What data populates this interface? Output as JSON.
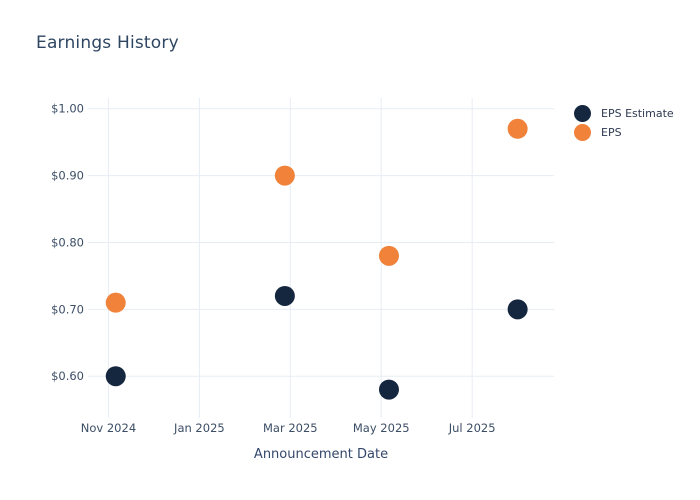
{
  "chart_data": {
    "type": "scatter",
    "title": "Earnings History",
    "xlabel": "Announcement Date",
    "ylabel": "",
    "grid": true,
    "legend_position": "outside-top-right",
    "x_tick_labels": [
      "Nov 2024",
      "Jan 2025",
      "Mar 2025",
      "May 2025",
      "Jul 2025"
    ],
    "x_ticks": [
      {
        "label": "Nov 2024",
        "t": 0
      },
      {
        "label": "Jan 2025",
        "t": 2
      },
      {
        "label": "Mar 2025",
        "t": 4
      },
      {
        "label": "May 2025",
        "t": 6
      },
      {
        "label": "Jul 2025",
        "t": 8
      }
    ],
    "y_ticks": [
      {
        "label": "$1.00",
        "value": 1.0
      },
      {
        "label": "$0.90",
        "value": 0.9
      },
      {
        "label": "$0.80",
        "value": 0.8
      },
      {
        "label": "$0.70",
        "value": 0.7
      },
      {
        "label": "$0.60",
        "value": 0.6
      }
    ],
    "x_range_months_from_nov2024": [
      -0.45,
      9.8
    ],
    "y_range": [
      0.545,
      1.016
    ],
    "marker_radius": 10,
    "series": [
      {
        "name": "EPS Estimate",
        "color": "#15273F",
        "marker": "circle",
        "points": [
          {
            "t": 0.16,
            "value": 0.6
          },
          {
            "t": 3.88,
            "value": 0.72
          },
          {
            "t": 6.17,
            "value": 0.58
          },
          {
            "t": 9.0,
            "value": 0.7
          }
        ]
      },
      {
        "name": "EPS",
        "color": "#F0823A",
        "marker": "circle",
        "points": [
          {
            "t": 0.16,
            "value": 0.71
          },
          {
            "t": 3.88,
            "value": 0.9
          },
          {
            "t": 6.17,
            "value": 0.78
          },
          {
            "t": 9.0,
            "value": 0.97
          }
        ]
      }
    ]
  },
  "colors": {
    "background": "#FFFFFF",
    "title_text": "#2F4662",
    "axis_text": "#3C4E66",
    "gridline": "#E7EDF4",
    "eps_estimate": "#15273F",
    "eps": "#F0823A"
  }
}
